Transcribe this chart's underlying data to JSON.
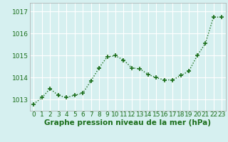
{
  "x": [
    0,
    1,
    2,
    3,
    4,
    5,
    6,
    7,
    8,
    9,
    10,
    11,
    12,
    13,
    14,
    15,
    16,
    17,
    18,
    19,
    20,
    21,
    22,
    23
  ],
  "y": [
    1012.8,
    1013.1,
    1013.5,
    1013.2,
    1013.1,
    1013.2,
    1013.3,
    1013.85,
    1014.45,
    1014.95,
    1015.0,
    1014.8,
    1014.45,
    1014.4,
    1014.15,
    1014.0,
    1013.9,
    1013.9,
    1014.1,
    1014.3,
    1015.0,
    1015.55,
    1016.75,
    1016.75
  ],
  "line_color": "#1a6e1a",
  "marker": "+",
  "marker_size": 4,
  "bg_color": "#d6f0f0",
  "grid_color": "#ffffff",
  "xlabel": "Graphe pression niveau de la mer (hPa)",
  "xlabel_fontsize": 7.5,
  "yticks": [
    1013,
    1014,
    1015,
    1016,
    1017
  ],
  "ylim": [
    1012.5,
    1017.4
  ],
  "xlim": [
    -0.5,
    23.5
  ],
  "tick_color": "#1a6e1a",
  "tick_fontsize": 6.5,
  "linewidth": 1.0
}
